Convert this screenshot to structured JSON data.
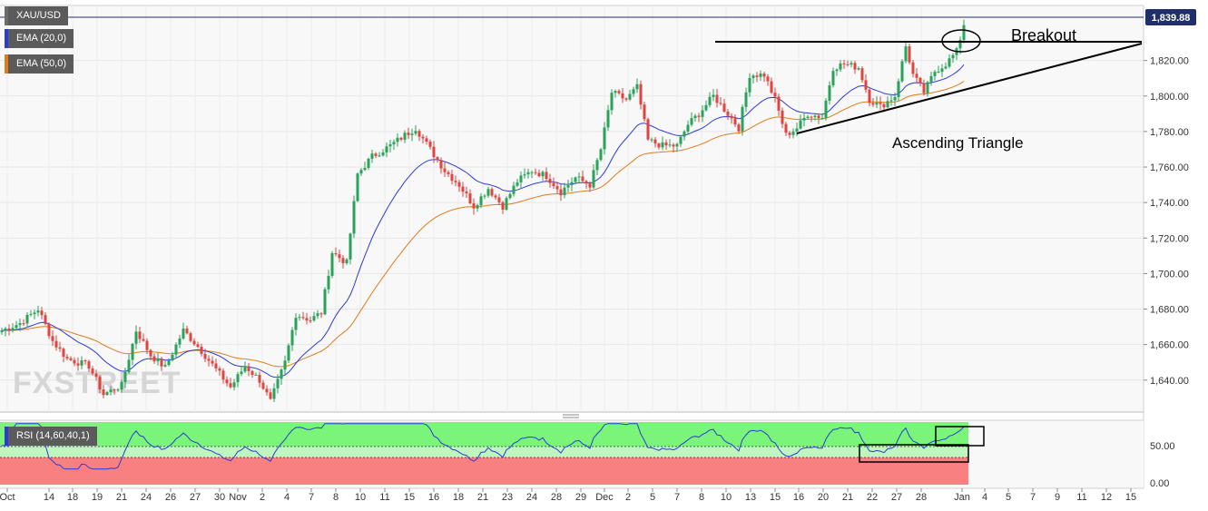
{
  "legend": {
    "symbol": "XAU/USD",
    "ema20": {
      "label": "EMA (20,0)",
      "color": "#2a3bd6"
    },
    "ema50": {
      "label": "EMA (50,0)",
      "color": "#e07b1a"
    },
    "rsi": {
      "label": "RSI (14,60,40,1)",
      "color": "#2a3bd6"
    }
  },
  "watermark": "FXSTREET",
  "annotations": {
    "breakout": "Breakout",
    "triangle": "Ascending Triangle"
  },
  "colors": {
    "up_candle": "#29a35a",
    "down_candle": "#e0443f",
    "rsi_overbought_zone": "#7af57a",
    "rsi_oversold_zone": "#f88080",
    "price_tag": "#1f2f6a"
  },
  "chart_data": [
    {
      "type": "candlestick",
      "symbol": "XAU/USD",
      "ylim": [
        1622,
        1851
      ],
      "y_ticks": [
        "1,640.00",
        "1,660.00",
        "1,680.00",
        "1,700.00",
        "1,720.00",
        "1,740.00",
        "1,760.00",
        "1,780.00",
        "1,800.00",
        "1,820.00"
      ],
      "last_price": 1839.88,
      "last_price_label": "1,839.88",
      "x_tick_labels": [
        "Oct",
        "14",
        "18",
        "19",
        "21",
        "24",
        "26",
        "27",
        "30",
        "Nov",
        "2",
        "4",
        "7",
        "8",
        "10",
        "11",
        "15",
        "16",
        "18",
        "21",
        "23",
        "24",
        "28",
        "29",
        "Dec",
        "2",
        "5",
        "7",
        "8",
        "10",
        "13",
        "15",
        "16",
        "20",
        "21",
        "22",
        "27",
        "28",
        "Jan",
        "4",
        "5",
        "7",
        "9",
        "11",
        "12",
        "15"
      ],
      "anchors": [
        {
          "i": 0,
          "v": 1668
        },
        {
          "i": 5,
          "v": 1672
        },
        {
          "i": 10,
          "v": 1680
        },
        {
          "i": 14,
          "v": 1662
        },
        {
          "i": 18,
          "v": 1652
        },
        {
          "i": 24,
          "v": 1648
        },
        {
          "i": 28,
          "v": 1632
        },
        {
          "i": 33,
          "v": 1637
        },
        {
          "i": 37,
          "v": 1668
        },
        {
          "i": 41,
          "v": 1654
        },
        {
          "i": 45,
          "v": 1647
        },
        {
          "i": 50,
          "v": 1668
        },
        {
          "i": 54,
          "v": 1659
        },
        {
          "i": 59,
          "v": 1646
        },
        {
          "i": 63,
          "v": 1636
        },
        {
          "i": 67,
          "v": 1648
        },
        {
          "i": 71,
          "v": 1640
        },
        {
          "i": 74,
          "v": 1628
        },
        {
          "i": 78,
          "v": 1650
        },
        {
          "i": 81,
          "v": 1677
        },
        {
          "i": 85,
          "v": 1674
        },
        {
          "i": 88,
          "v": 1678
        },
        {
          "i": 91,
          "v": 1712
        },
        {
          "i": 95,
          "v": 1706
        },
        {
          "i": 98,
          "v": 1756
        },
        {
          "i": 102,
          "v": 1766
        },
        {
          "i": 107,
          "v": 1772
        },
        {
          "i": 111,
          "v": 1778
        },
        {
          "i": 114,
          "v": 1782
        },
        {
          "i": 118,
          "v": 1770
        },
        {
          "i": 122,
          "v": 1758
        },
        {
          "i": 126,
          "v": 1750
        },
        {
          "i": 130,
          "v": 1738
        },
        {
          "i": 134,
          "v": 1748
        },
        {
          "i": 138,
          "v": 1738
        },
        {
          "i": 142,
          "v": 1752
        },
        {
          "i": 146,
          "v": 1758
        },
        {
          "i": 150,
          "v": 1755
        },
        {
          "i": 154,
          "v": 1746
        },
        {
          "i": 158,
          "v": 1754
        },
        {
          "i": 162,
          "v": 1750
        },
        {
          "i": 165,
          "v": 1770
        },
        {
          "i": 168,
          "v": 1802
        },
        {
          "i": 172,
          "v": 1798
        },
        {
          "i": 175,
          "v": 1805
        },
        {
          "i": 178,
          "v": 1775
        },
        {
          "i": 182,
          "v": 1772
        },
        {
          "i": 186,
          "v": 1772
        },
        {
          "i": 189,
          "v": 1784
        },
        {
          "i": 192,
          "v": 1790
        },
        {
          "i": 196,
          "v": 1800
        },
        {
          "i": 200,
          "v": 1790
        },
        {
          "i": 203,
          "v": 1782
        },
        {
          "i": 206,
          "v": 1812
        },
        {
          "i": 210,
          "v": 1812
        },
        {
          "i": 213,
          "v": 1798
        },
        {
          "i": 216,
          "v": 1778
        },
        {
          "i": 219,
          "v": 1782
        },
        {
          "i": 222,
          "v": 1790
        },
        {
          "i": 226,
          "v": 1788
        },
        {
          "i": 229,
          "v": 1816
        },
        {
          "i": 232,
          "v": 1818
        },
        {
          "i": 236,
          "v": 1816
        },
        {
          "i": 239,
          "v": 1798
        },
        {
          "i": 242,
          "v": 1794
        },
        {
          "i": 246,
          "v": 1800
        },
        {
          "i": 249,
          "v": 1828
        },
        {
          "i": 251,
          "v": 1812
        },
        {
          "i": 254,
          "v": 1802
        },
        {
          "i": 257,
          "v": 1814
        },
        {
          "i": 260,
          "v": 1818
        },
        {
          "i": 263,
          "v": 1825
        },
        {
          "i": 265,
          "v": 1839.88
        }
      ],
      "breakout_level": 1826,
      "triangle_support_start": {
        "date_index": 219,
        "price": 1776
      },
      "triangle_support_end": {
        "date_index": 311,
        "price": 1826
      }
    },
    {
      "type": "line",
      "indicator": "RSI (14,60,40,1)",
      "ylim": [
        0,
        80
      ],
      "y_ticks": [
        "0.00",
        "50.00"
      ],
      "overbought": 60,
      "oversold": 40
    }
  ]
}
